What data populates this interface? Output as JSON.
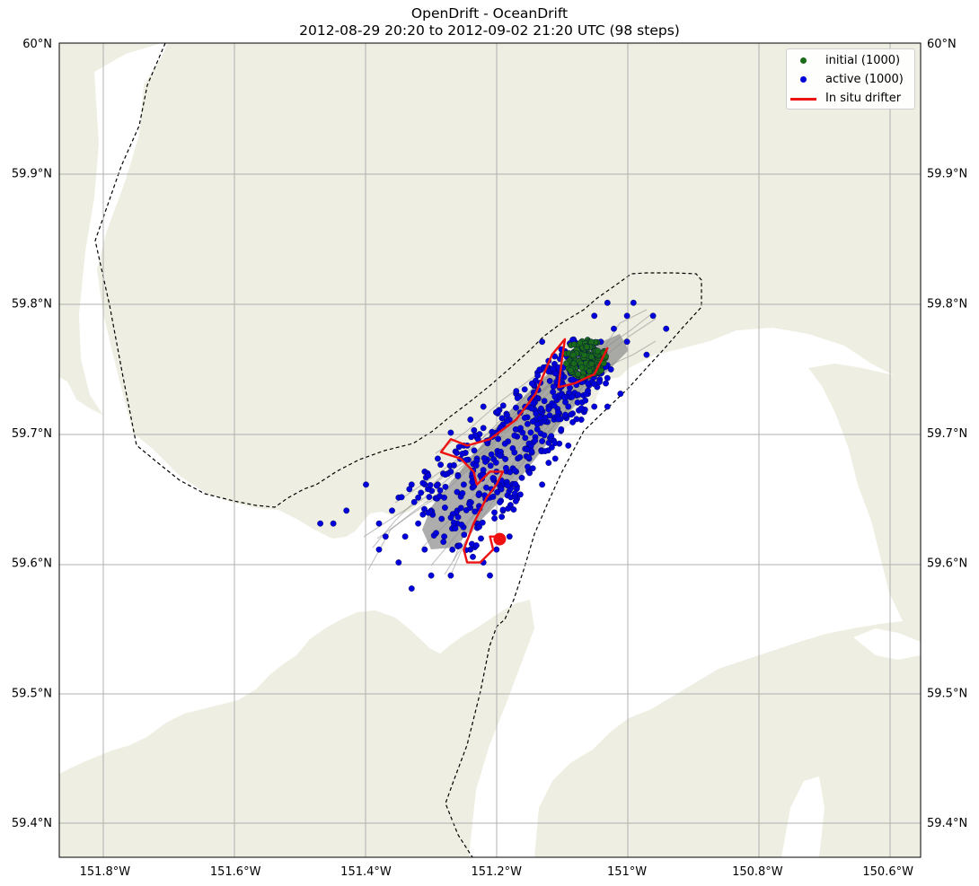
{
  "title": {
    "line1": "OpenDrift - OceanDrift",
    "line2": "2012-08-29 20:20 to 2012-09-02 21:20 UTC (98 steps)"
  },
  "map": {
    "extent": {
      "lon": [
        -151.87,
        -150.55
      ],
      "lat": [
        59.373,
        60.0
      ]
    },
    "colors": {
      "land": "#eeeee2",
      "ocean": "#ffffff",
      "grid": "#b0b0b0",
      "boundary": "#000000"
    },
    "gridlines": true
  },
  "axes": {
    "x_ticks": [
      {
        "value": -151.8,
        "label": "151.8°W"
      },
      {
        "value": -151.6,
        "label": "151.6°W"
      },
      {
        "value": -151.4,
        "label": "151.4°W"
      },
      {
        "value": -151.2,
        "label": "151.2°W"
      },
      {
        "value": -151.0,
        "label": "151°W"
      },
      {
        "value": -150.8,
        "label": "150.8°W"
      },
      {
        "value": -150.6,
        "label": "150.6°W"
      }
    ],
    "y_ticks": [
      {
        "value": 60.0,
        "label": "60°N"
      },
      {
        "value": 59.9,
        "label": "59.9°N"
      },
      {
        "value": 59.8,
        "label": "59.8°N"
      },
      {
        "value": 59.7,
        "label": "59.7°N"
      },
      {
        "value": 59.6,
        "label": "59.6°N"
      },
      {
        "value": 59.5,
        "label": "59.5°N"
      },
      {
        "value": 59.4,
        "label": "59.4°N"
      }
    ]
  },
  "legend": {
    "placement": "top-right",
    "items": [
      {
        "label": "initial (1000)",
        "kind": "marker",
        "color": "#1a6b1a"
      },
      {
        "label": "active (1000)",
        "kind": "marker",
        "color": "#0000dd"
      },
      {
        "label": "In situ drifter",
        "kind": "line",
        "color": "#ee1111"
      }
    ]
  },
  "chart_data": {
    "type": "scatter",
    "title": "OpenDrift - OceanDrift",
    "subtitle": "2012-08-29 20:20 to 2012-09-02 21:20 UTC (98 steps)",
    "initial_particles": {
      "count": 1000,
      "color": "#1a6b1a",
      "center_lon": -151.063,
      "center_lat": 59.757,
      "radius_deg_lon": 0.033,
      "radius_deg_lat": 0.015
    },
    "active_particles": {
      "count": 1000,
      "color": "#0000dd",
      "sample_points": [
        [
          -151.28,
          59.62
        ],
        [
          -151.3,
          59.64
        ],
        [
          -151.32,
          59.65
        ],
        [
          -151.26,
          59.63
        ],
        [
          -151.34,
          59.62
        ],
        [
          -151.36,
          59.64
        ],
        [
          -151.38,
          59.63
        ],
        [
          -151.24,
          59.61
        ],
        [
          -151.22,
          59.6
        ],
        [
          -151.2,
          59.61
        ],
        [
          -151.18,
          59.62
        ],
        [
          -151.25,
          59.66
        ],
        [
          -151.27,
          59.67
        ],
        [
          -151.29,
          59.66
        ],
        [
          -151.21,
          59.65
        ],
        [
          -151.19,
          59.66
        ],
        [
          -151.17,
          59.67
        ],
        [
          -151.15,
          59.68
        ],
        [
          -151.23,
          59.68
        ],
        [
          -151.25,
          59.69
        ],
        [
          -151.2,
          59.7
        ],
        [
          -151.18,
          59.71
        ],
        [
          -151.22,
          59.72
        ],
        [
          -151.16,
          59.7
        ],
        [
          -151.14,
          59.71
        ],
        [
          -151.12,
          59.72
        ],
        [
          -151.1,
          59.73
        ],
        [
          -151.08,
          59.74
        ],
        [
          -151.14,
          59.74
        ],
        [
          -151.12,
          59.75
        ],
        [
          -151.06,
          59.75
        ],
        [
          -151.04,
          59.77
        ],
        [
          -151.02,
          59.78
        ],
        [
          -151.0,
          59.79
        ],
        [
          -150.99,
          59.8
        ],
        [
          -150.96,
          59.79
        ],
        [
          -150.94,
          59.78
        ],
        [
          -151.05,
          59.79
        ],
        [
          -151.03,
          59.8
        ],
        [
          -151.08,
          59.77
        ],
        [
          -151.4,
          59.66
        ],
        [
          -151.43,
          59.64
        ],
        [
          -151.45,
          59.63
        ],
        [
          -151.47,
          59.63
        ],
        [
          -151.35,
          59.6
        ],
        [
          -151.3,
          59.59
        ],
        [
          -151.27,
          59.59
        ],
        [
          -151.33,
          59.58
        ],
        [
          -151.21,
          59.59
        ],
        [
          -151.38,
          59.61
        ],
        [
          -151.31,
          59.61
        ],
        [
          -151.26,
          59.64
        ],
        [
          -151.23,
          59.63
        ],
        [
          -151.19,
          59.64
        ],
        [
          -151.17,
          59.65
        ],
        [
          -151.13,
          59.66
        ],
        [
          -151.11,
          59.68
        ],
        [
          -151.09,
          59.69
        ],
        [
          -151.07,
          59.71
        ],
        [
          -151.05,
          59.72
        ],
        [
          -151.03,
          59.72
        ],
        [
          -151.01,
          59.73
        ],
        [
          -151.1,
          59.76
        ],
        [
          -151.13,
          59.77
        ],
        [
          -151.17,
          59.73
        ],
        [
          -151.2,
          59.67
        ],
        [
          -151.27,
          59.7
        ],
        [
          -151.24,
          59.71
        ],
        [
          -151.29,
          59.68
        ],
        [
          -151.31,
          59.67
        ],
        [
          -151.33,
          59.66
        ],
        [
          -151.35,
          59.65
        ],
        [
          -151.28,
          59.65
        ],
        [
          -151.32,
          59.63
        ],
        [
          -151.37,
          59.62
        ],
        [
          -150.97,
          59.76
        ],
        [
          -151.0,
          59.77
        ],
        [
          -151.06,
          59.73
        ],
        [
          -151.09,
          59.72
        ],
        [
          -151.15,
          59.69
        ]
      ]
    },
    "in_situ_drifter": {
      "color": "#ee1111",
      "track": [
        [
          -151.03,
          59.765
        ],
        [
          -151.05,
          59.745
        ],
        [
          -151.08,
          59.738
        ],
        [
          -151.105,
          59.735
        ],
        [
          -151.1,
          59.755
        ],
        [
          -151.095,
          59.772
        ],
        [
          -151.115,
          59.76
        ],
        [
          -151.14,
          59.73
        ],
        [
          -151.17,
          59.71
        ],
        [
          -151.21,
          59.695
        ],
        [
          -151.245,
          59.69
        ],
        [
          -151.27,
          59.695
        ],
        [
          -151.285,
          59.685
        ],
        [
          -151.255,
          59.68
        ],
        [
          -151.235,
          59.67
        ],
        [
          -151.23,
          59.66
        ],
        [
          -151.21,
          59.67
        ],
        [
          -151.19,
          59.67
        ],
        [
          -151.2,
          59.66
        ],
        [
          -151.215,
          59.65
        ],
        [
          -151.235,
          59.63
        ],
        [
          -151.25,
          59.61
        ],
        [
          -151.245,
          59.6
        ],
        [
          -151.225,
          59.6
        ],
        [
          -151.205,
          59.61
        ],
        [
          -151.21,
          59.62
        ],
        [
          -151.195,
          59.62
        ]
      ],
      "end_point": [
        -151.195,
        59.618
      ]
    }
  }
}
